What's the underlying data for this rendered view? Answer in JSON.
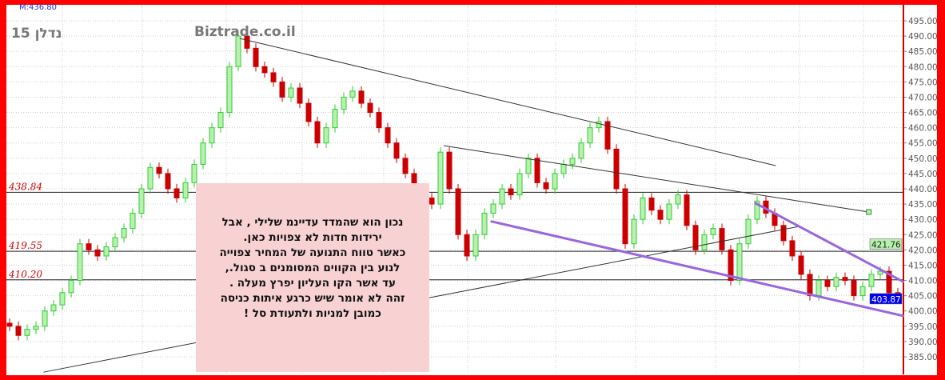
{
  "header": {
    "max_label": "M:436.80",
    "symbol": "נדלן 15",
    "site": "Biztrade.co.il"
  },
  "note": {
    "lines": [
      "נכון הוא שהמדד עדיינמ שלילי , אבל",
      "ירידות חדות לא צפויות כאן.",
      "כאשר  טווח התנועה של המחיר  צפוייה",
      "לנוע  בין הקווים המסומנים  ב  סגול.,",
      "עד אשר הקו העליון יפרץ מעלה .",
      "זהה לא אומר שיש כרגע איתות כניסה",
      "כמובן  למניות ולתעודת סל !"
    ]
  },
  "colors": {
    "up": "#33cc33",
    "up_fill": "#b8f0b0",
    "down": "#cc0000",
    "purple": "#9966dd",
    "background": "#ff0000"
  },
  "chart_data": {
    "type": "candlestick",
    "ylim": [
      383,
      500
    ],
    "y_ticks": [
      "495.00",
      "490.00",
      "485.00",
      "480.00",
      "475.00",
      "470.00",
      "465.00",
      "460.00",
      "455.00",
      "450.00",
      "445.00",
      "440.00",
      "435.00",
      "430.00",
      "425.00",
      "420.00",
      "415.00",
      "410.00",
      "405.00",
      "400.00",
      "395.00",
      "390.00",
      "385.00"
    ],
    "grid": true,
    "closes": [
      395,
      392,
      394,
      395,
      400,
      402,
      406,
      410,
      422,
      420,
      418,
      421,
      424,
      427,
      432,
      440,
      447,
      445,
      440,
      437,
      442,
      448,
      455,
      460,
      465,
      480,
      490,
      486,
      480,
      478,
      475,
      470,
      473,
      468,
      462,
      455,
      460,
      466,
      470,
      472,
      468,
      465,
      460,
      455,
      450,
      445,
      440,
      437,
      435,
      452,
      440,
      425,
      418,
      425,
      432,
      435,
      440,
      438,
      445,
      450,
      442,
      440,
      445,
      448,
      450,
      455,
      460,
      462,
      453,
      440,
      422,
      430,
      437,
      433,
      430,
      435,
      438,
      428,
      420,
      425,
      427,
      420,
      410,
      422,
      430,
      436,
      432,
      428,
      423,
      418,
      412,
      405,
      410,
      408,
      411,
      410,
      405,
      408,
      412,
      413,
      406,
      403.87
    ],
    "horizontal_levels": [
      {
        "value": 438.84,
        "label": "438.84"
      },
      {
        "value": 419.55,
        "label": "419.55"
      },
      {
        "value": 410.2,
        "label": "410.20"
      }
    ],
    "trendlines": [
      {
        "from": [
          26.2,
          489.2
        ],
        "to": [
          87.1,
          447.6
        ],
        "color": "#333333"
      },
      {
        "from": [
          49.4,
          454.1
        ],
        "to": [
          97.7,
          432.4
        ],
        "color": "#333333",
        "end_marker": true
      },
      {
        "from": [
          3.9,
          380.0
        ],
        "to": [
          89.8,
          427.7
        ],
        "color": "#333333"
      },
      {
        "from": [
          54.8,
          429.3
        ],
        "to": [
          101.6,
          398.4
        ],
        "color": "#9966dd"
      },
      {
        "from": [
          84.8,
          435.3
        ],
        "to": [
          101.6,
          409.6
        ],
        "color": "#9966dd"
      }
    ],
    "axis_badges": [
      {
        "value": 421.76,
        "label": "421.76",
        "bg": "#b8f0b0",
        "fg": "#222222"
      },
      {
        "value": 403.87,
        "label": "403.87",
        "bg": "#0000ee",
        "fg": "#ffffff"
      }
    ]
  }
}
